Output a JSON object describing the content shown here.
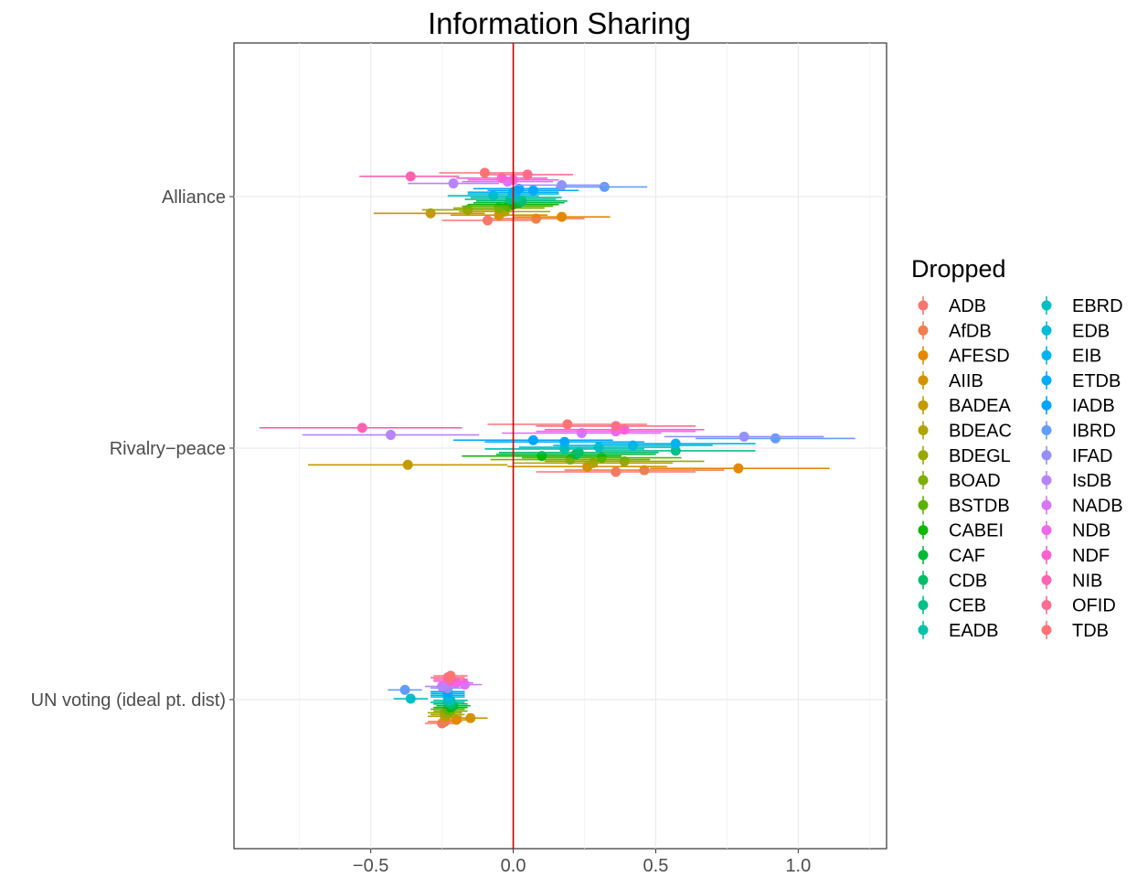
{
  "chart_data": {
    "type": "scatter",
    "subtype": "coefficient-plot-with-error-bars",
    "title": "Information Sharing",
    "xlabel": "",
    "ylabel": "",
    "xlim": [
      -0.98,
      1.31
    ],
    "xticks": [
      -0.5,
      0.0,
      0.5,
      1.0
    ],
    "xtick_labels": [
      "−0.5",
      "0.0",
      "0.5",
      "1.0"
    ],
    "categories": [
      "Alliance",
      "Rivalry−peace",
      "UN voting (ideal pt. dist)"
    ],
    "reference_line": {
      "x": 0,
      "color": "#cc0000"
    },
    "grid": true,
    "legend": {
      "title": "Dropped",
      "position": "right",
      "columns": 2
    },
    "series": [
      {
        "name": "ADB",
        "color": "#F8766D",
        "points": [
          {
            "y": "Alliance",
            "x": -0.09,
            "lo": -0.25,
            "hi": 0.07
          },
          {
            "y": "Rivalry−peace",
            "x": 0.36,
            "lo": 0.08,
            "hi": 0.64
          },
          {
            "y": "UN voting (ideal pt. dist)",
            "x": -0.25,
            "lo": -0.31,
            "hi": -0.19
          }
        ]
      },
      {
        "name": "AfDB",
        "color": "#F07E4F",
        "points": [
          {
            "y": "Alliance",
            "x": 0.08,
            "lo": -0.09,
            "hi": 0.25
          },
          {
            "y": "Rivalry−peace",
            "x": 0.46,
            "lo": 0.18,
            "hi": 0.74
          },
          {
            "y": "UN voting (ideal pt. dist)",
            "x": -0.24,
            "lo": -0.3,
            "hi": -0.18
          }
        ]
      },
      {
        "name": "AFESD",
        "color": "#E38900",
        "points": [
          {
            "y": "Alliance",
            "x": 0.17,
            "lo": 0.0,
            "hi": 0.34
          },
          {
            "y": "Rivalry−peace",
            "x": 0.79,
            "lo": 0.48,
            "hi": 1.11
          },
          {
            "y": "UN voting (ideal pt. dist)",
            "x": -0.2,
            "lo": -0.26,
            "hi": -0.14
          }
        ]
      },
      {
        "name": "AIIB",
        "color": "#D39200",
        "points": [
          {
            "y": "Alliance",
            "x": -0.05,
            "lo": -0.22,
            "hi": 0.12
          },
          {
            "y": "Rivalry−peace",
            "x": 0.26,
            "lo": -0.02,
            "hi": 0.54
          },
          {
            "y": "UN voting (ideal pt. dist)",
            "x": -0.15,
            "lo": -0.21,
            "hi": -0.09
          }
        ]
      },
      {
        "name": "BADEA",
        "color": "#C49A00",
        "points": [
          {
            "y": "Alliance",
            "x": -0.29,
            "lo": -0.49,
            "hi": -0.1
          },
          {
            "y": "Rivalry−peace",
            "x": -0.37,
            "lo": -0.72,
            "hi": -0.02
          },
          {
            "y": "UN voting (ideal pt. dist)",
            "x": -0.24,
            "lo": -0.3,
            "hi": -0.18
          }
        ]
      },
      {
        "name": "BDEAC",
        "color": "#B0A200",
        "points": [
          {
            "y": "Alliance",
            "x": -0.03,
            "lo": -0.19,
            "hi": 0.13
          },
          {
            "y": "Rivalry−peace",
            "x": 0.28,
            "lo": 0.0,
            "hi": 0.56
          },
          {
            "y": "UN voting (ideal pt. dist)",
            "x": -0.23,
            "lo": -0.29,
            "hi": -0.17
          }
        ]
      },
      {
        "name": "BDEGL",
        "color": "#99A800",
        "points": [
          {
            "y": "Alliance",
            "x": -0.16,
            "lo": -0.32,
            "hi": 0.0
          },
          {
            "y": "Rivalry−peace",
            "x": 0.39,
            "lo": 0.11,
            "hi": 0.67
          },
          {
            "y": "UN voting (ideal pt. dist)",
            "x": -0.24,
            "lo": -0.3,
            "hi": -0.18
          }
        ]
      },
      {
        "name": "BOAD",
        "color": "#7FAE00",
        "points": [
          {
            "y": "Alliance",
            "x": -0.05,
            "lo": -0.21,
            "hi": 0.11
          },
          {
            "y": "Rivalry−peace",
            "x": 0.2,
            "lo": -0.08,
            "hi": 0.48
          },
          {
            "y": "UN voting (ideal pt. dist)",
            "x": -0.22,
            "lo": -0.28,
            "hi": -0.16
          }
        ]
      },
      {
        "name": "BSTDB",
        "color": "#5BB300",
        "points": [
          {
            "y": "Alliance",
            "x": -0.02,
            "lo": -0.18,
            "hi": 0.14
          },
          {
            "y": "Rivalry−peace",
            "x": 0.31,
            "lo": 0.03,
            "hi": 0.59
          },
          {
            "y": "UN voting (ideal pt. dist)",
            "x": -0.23,
            "lo": -0.29,
            "hi": -0.17
          }
        ]
      },
      {
        "name": "CABEI",
        "color": "#0CB702",
        "points": [
          {
            "y": "Alliance",
            "x": 0.0,
            "lo": -0.16,
            "hi": 0.16
          },
          {
            "y": "Rivalry−peace",
            "x": 0.1,
            "lo": -0.18,
            "hi": 0.38
          },
          {
            "y": "UN voting (ideal pt. dist)",
            "x": -0.22,
            "lo": -0.28,
            "hi": -0.16
          }
        ]
      },
      {
        "name": "CAF",
        "color": "#00BA38",
        "points": [
          {
            "y": "Alliance",
            "x": 0.02,
            "lo": -0.14,
            "hi": 0.18
          },
          {
            "y": "Rivalry−peace",
            "x": 0.22,
            "lo": -0.06,
            "hi": 0.5
          },
          {
            "y": "UN voting (ideal pt. dist)",
            "x": -0.21,
            "lo": -0.27,
            "hi": -0.15
          }
        ]
      },
      {
        "name": "CDB",
        "color": "#00BE67",
        "points": [
          {
            "y": "Alliance",
            "x": 0.03,
            "lo": -0.13,
            "hi": 0.19
          },
          {
            "y": "Rivalry−peace",
            "x": 0.23,
            "lo": -0.05,
            "hi": 0.51
          },
          {
            "y": "UN voting (ideal pt. dist)",
            "x": -0.22,
            "lo": -0.28,
            "hi": -0.16
          }
        ]
      },
      {
        "name": "CEB",
        "color": "#00C08B",
        "points": [
          {
            "y": "Alliance",
            "x": -0.01,
            "lo": -0.17,
            "hi": 0.15
          },
          {
            "y": "Rivalry−peace",
            "x": 0.57,
            "lo": 0.29,
            "hi": 0.85
          },
          {
            "y": "UN voting (ideal pt. dist)",
            "x": -0.23,
            "lo": -0.29,
            "hi": -0.17
          }
        ]
      },
      {
        "name": "EADB",
        "color": "#00C1A9",
        "points": [
          {
            "y": "Alliance",
            "x": 0.01,
            "lo": -0.15,
            "hi": 0.17
          },
          {
            "y": "Rivalry−peace",
            "x": 0.18,
            "lo": -0.1,
            "hi": 0.46
          },
          {
            "y": "UN voting (ideal pt. dist)",
            "x": -0.22,
            "lo": -0.28,
            "hi": -0.16
          }
        ]
      },
      {
        "name": "EBRD",
        "color": "#00BFC4",
        "points": [
          {
            "y": "Alliance",
            "x": -0.07,
            "lo": -0.23,
            "hi": 0.09
          },
          {
            "y": "Rivalry−peace",
            "x": 0.3,
            "lo": 0.02,
            "hi": 0.58
          },
          {
            "y": "UN voting (ideal pt. dist)",
            "x": -0.36,
            "lo": -0.42,
            "hi": -0.3
          }
        ]
      },
      {
        "name": "EDB",
        "color": "#00BBDB",
        "points": [
          {
            "y": "Alliance",
            "x": 0.0,
            "lo": -0.16,
            "hi": 0.16
          },
          {
            "y": "Rivalry−peace",
            "x": 0.42,
            "lo": 0.14,
            "hi": 0.7
          },
          {
            "y": "UN voting (ideal pt. dist)",
            "x": -0.23,
            "lo": -0.29,
            "hi": -0.17
          }
        ]
      },
      {
        "name": "EIB",
        "color": "#00B4EF",
        "points": [
          {
            "y": "Alliance",
            "x": 0.0,
            "lo": -0.16,
            "hi": 0.16
          },
          {
            "y": "Rivalry−peace",
            "x": 0.57,
            "lo": 0.29,
            "hi": 0.85
          },
          {
            "y": "UN voting (ideal pt. dist)",
            "x": -0.23,
            "lo": -0.29,
            "hi": -0.17
          }
        ]
      },
      {
        "name": "ETDB",
        "color": "#00ABFD",
        "points": [
          {
            "y": "Alliance",
            "x": 0.07,
            "lo": -0.09,
            "hi": 0.23
          },
          {
            "y": "Rivalry−peace",
            "x": 0.18,
            "lo": -0.1,
            "hi": 0.46
          },
          {
            "y": "UN voting (ideal pt. dist)",
            "x": -0.23,
            "lo": -0.29,
            "hi": -0.17
          }
        ]
      },
      {
        "name": "IADB",
        "color": "#00A5FF",
        "points": [
          {
            "y": "Alliance",
            "x": 0.02,
            "lo": -0.14,
            "hi": 0.18
          },
          {
            "y": "Rivalry−peace",
            "x": 0.07,
            "lo": -0.21,
            "hi": 0.35
          },
          {
            "y": "UN voting (ideal pt. dist)",
            "x": -0.23,
            "lo": -0.29,
            "hi": -0.17
          }
        ]
      },
      {
        "name": "IBRD",
        "color": "#619CFF",
        "points": [
          {
            "y": "Alliance",
            "x": 0.32,
            "lo": 0.15,
            "hi": 0.47
          },
          {
            "y": "Rivalry−peace",
            "x": 0.92,
            "lo": 0.64,
            "hi": 1.2
          },
          {
            "y": "UN voting (ideal pt. dist)",
            "x": -0.38,
            "lo": -0.44,
            "hi": -0.32
          }
        ]
      },
      {
        "name": "IFAD",
        "color": "#9590FF",
        "points": [
          {
            "y": "Alliance",
            "x": 0.17,
            "lo": 0.01,
            "hi": 0.33
          },
          {
            "y": "Rivalry−peace",
            "x": 0.81,
            "lo": 0.53,
            "hi": 1.09
          },
          {
            "y": "UN voting (ideal pt. dist)",
            "x": -0.23,
            "lo": -0.29,
            "hi": -0.17
          }
        ]
      },
      {
        "name": "IsDB",
        "color": "#B983FF",
        "points": [
          {
            "y": "Alliance",
            "x": -0.21,
            "lo": -0.37,
            "hi": -0.05
          },
          {
            "y": "Rivalry−peace",
            "x": -0.43,
            "lo": -0.74,
            "hi": -0.12
          },
          {
            "y": "UN voting (ideal pt. dist)",
            "x": -0.25,
            "lo": -0.31,
            "hi": -0.19
          }
        ]
      },
      {
        "name": "NADB",
        "color": "#D874FD",
        "points": [
          {
            "y": "Alliance",
            "x": -0.02,
            "lo": -0.18,
            "hi": 0.14
          },
          {
            "y": "Rivalry−peace",
            "x": 0.24,
            "lo": -0.04,
            "hi": 0.52
          },
          {
            "y": "UN voting (ideal pt. dist)",
            "x": -0.17,
            "lo": -0.23,
            "hi": -0.11
          }
        ]
      },
      {
        "name": "NDB",
        "color": "#EF67EB",
        "points": [
          {
            "y": "Alliance",
            "x": 0.0,
            "lo": -0.16,
            "hi": 0.16
          },
          {
            "y": "Rivalry−peace",
            "x": 0.36,
            "lo": 0.08,
            "hi": 0.64
          },
          {
            "y": "UN voting (ideal pt. dist)",
            "x": -0.2,
            "lo": -0.26,
            "hi": -0.14
          }
        ]
      },
      {
        "name": "NDF",
        "color": "#FD61D1",
        "points": [
          {
            "y": "Alliance",
            "x": -0.04,
            "lo": -0.2,
            "hi": 0.12
          },
          {
            "y": "Rivalry−peace",
            "x": 0.39,
            "lo": 0.11,
            "hi": 0.67
          },
          {
            "y": "UN voting (ideal pt. dist)",
            "x": -0.22,
            "lo": -0.28,
            "hi": -0.16
          }
        ]
      },
      {
        "name": "NIB",
        "color": "#FF64B0",
        "points": [
          {
            "y": "Alliance",
            "x": -0.36,
            "lo": -0.54,
            "hi": -0.19
          },
          {
            "y": "Rivalry−peace",
            "x": -0.53,
            "lo": -0.89,
            "hi": -0.18
          },
          {
            "y": "UN voting (ideal pt. dist)",
            "x": -0.22,
            "lo": -0.28,
            "hi": -0.16
          }
        ]
      },
      {
        "name": "OFID",
        "color": "#FF6C91",
        "points": [
          {
            "y": "Alliance",
            "x": 0.05,
            "lo": -0.11,
            "hi": 0.21
          },
          {
            "y": "Rivalry−peace",
            "x": 0.36,
            "lo": 0.08,
            "hi": 0.64
          },
          {
            "y": "UN voting (ideal pt. dist)",
            "x": -0.23,
            "lo": -0.29,
            "hi": -0.17
          }
        ]
      },
      {
        "name": "TDB",
        "color": "#FF7375",
        "points": [
          {
            "y": "Alliance",
            "x": -0.1,
            "lo": -0.26,
            "hi": 0.06
          },
          {
            "y": "Rivalry−peace",
            "x": 0.19,
            "lo": -0.09,
            "hi": 0.47
          },
          {
            "y": "UN voting (ideal pt. dist)",
            "x": -0.22,
            "lo": -0.28,
            "hi": -0.16
          }
        ]
      }
    ]
  }
}
